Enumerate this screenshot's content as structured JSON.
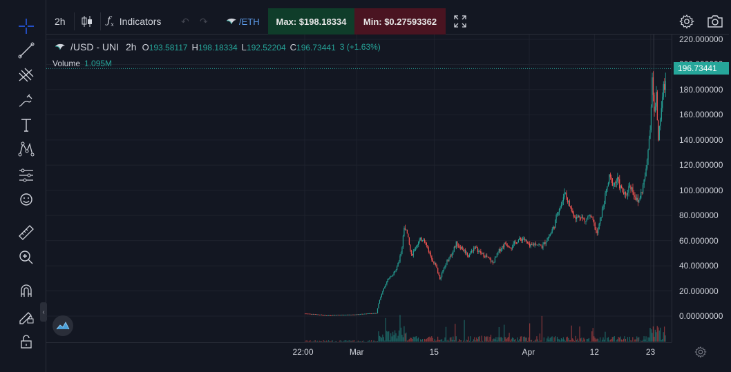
{
  "topbar": {
    "interval": "2h",
    "indicators_label": "Indicators",
    "pair_suffix": "/ETH",
    "max_label": "Max: $198.18334",
    "min_label": "Min: $0.27593362"
  },
  "legend": {
    "symbol": "/USD - UNI",
    "interval": "2h",
    "o_label": "O",
    "o_value": "193.58117",
    "h_label": "H",
    "h_value": "198.18334",
    "l_label": "L",
    "l_value": "192.52204",
    "c_label": "C",
    "c_value": "196.73441",
    "change": "3 (+1.63%)",
    "volume_label": "Volume",
    "volume_value": "1.095M"
  },
  "price_tag": "196.73441",
  "colors": {
    "up": "#26a69a",
    "down": "#ef5350",
    "background": "#131722",
    "grid": "#1e222d"
  },
  "icons": [
    "crosshair-icon",
    "trend-line-icon",
    "pitchfork-icon",
    "brush-icon",
    "text-icon",
    "pattern-icon",
    "measure-icon",
    "emoji-icon",
    "ruler-icon",
    "zoom-icon",
    "magnet-icon",
    "lock-draw-icon",
    "unlock-icon"
  ],
  "chart_data": {
    "type": "candlestick",
    "title": "",
    "ylim": [
      -20,
      222
    ],
    "y_ticks": [
      "220.000000",
      "200.000000",
      "180.000000",
      "160.000000",
      "140.000000",
      "120.000000",
      "100.000000",
      "80.000000",
      "60.000000",
      "40.000000",
      "20.000000",
      "0.00000000"
    ],
    "y_tick_values": [
      220,
      200,
      180,
      160,
      140,
      120,
      100,
      80,
      60,
      40,
      20,
      0
    ],
    "x_ticks": [
      "22:00",
      "Mar",
      "15",
      "Apr",
      "12",
      "23"
    ],
    "x_tick_index": [
      0,
      51,
      127,
      220,
      284,
      339
    ],
    "n_bars": 354,
    "close_path": [
      [
        0,
        2
      ],
      [
        10,
        1.5
      ],
      [
        20,
        0.5
      ],
      [
        30,
        0.8
      ],
      [
        40,
        1
      ],
      [
        50,
        1.2
      ],
      [
        60,
        2
      ],
      [
        70,
        2.2
      ],
      [
        72,
        10
      ],
      [
        76,
        20
      ],
      [
        80,
        28
      ],
      [
        84,
        32
      ],
      [
        88,
        35
      ],
      [
        92,
        45
      ],
      [
        95,
        55
      ],
      [
        97,
        72
      ],
      [
        100,
        65
      ],
      [
        104,
        48
      ],
      [
        108,
        55
      ],
      [
        112,
        60
      ],
      [
        116,
        62
      ],
      [
        120,
        54
      ],
      [
        124,
        46
      ],
      [
        128,
        40
      ],
      [
        132,
        30
      ],
      [
        136,
        38
      ],
      [
        140,
        45
      ],
      [
        144,
        50
      ],
      [
        148,
        58
      ],
      [
        152,
        55
      ],
      [
        156,
        52
      ],
      [
        160,
        48
      ],
      [
        166,
        55
      ],
      [
        172,
        50
      ],
      [
        178,
        47
      ],
      [
        184,
        42
      ],
      [
        190,
        52
      ],
      [
        196,
        58
      ],
      [
        202,
        55
      ],
      [
        208,
        60
      ],
      [
        214,
        62
      ],
      [
        220,
        55
      ],
      [
        226,
        58
      ],
      [
        232,
        55
      ],
      [
        236,
        60
      ],
      [
        240,
        65
      ],
      [
        244,
        72
      ],
      [
        248,
        85
      ],
      [
        252,
        90
      ],
      [
        254,
        100
      ],
      [
        258,
        90
      ],
      [
        262,
        82
      ],
      [
        266,
        78
      ],
      [
        270,
        80
      ],
      [
        274,
        75
      ],
      [
        278,
        80
      ],
      [
        282,
        75
      ],
      [
        286,
        65
      ],
      [
        290,
        80
      ],
      [
        294,
        95
      ],
      [
        298,
        110
      ],
      [
        302,
        105
      ],
      [
        306,
        108
      ],
      [
        310,
        100
      ],
      [
        314,
        95
      ],
      [
        318,
        105
      ],
      [
        322,
        98
      ],
      [
        326,
        90
      ],
      [
        330,
        100
      ],
      [
        334,
        115
      ],
      [
        338,
        150
      ],
      [
        340,
        190
      ],
      [
        342,
        160
      ],
      [
        344,
        175
      ],
      [
        346,
        140
      ],
      [
        348,
        160
      ],
      [
        350,
        175
      ],
      [
        352,
        185
      ],
      [
        354,
        196.73
      ]
    ]
  }
}
